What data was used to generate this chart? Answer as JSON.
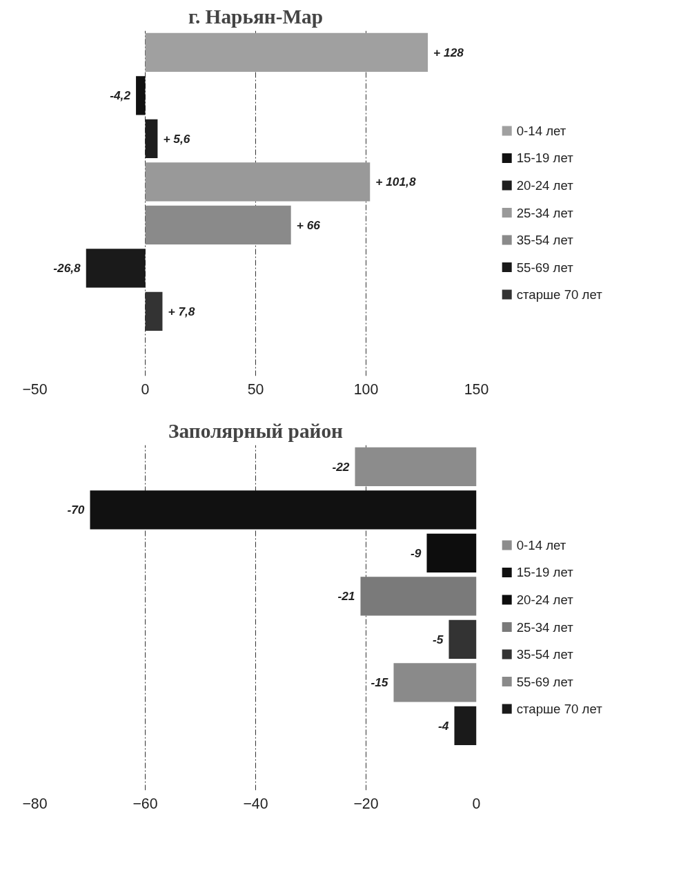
{
  "chart_data": [
    {
      "type": "bar",
      "title": "г. Нарьян-Мар",
      "orientation": "horizontal",
      "categories": [
        null
      ],
      "xlim": [
        -50,
        150
      ],
      "xticks": [
        -50,
        0,
        50,
        100,
        150
      ],
      "grid": "x",
      "legend": "right",
      "tick_labels": "x",
      "series": [
        {
          "name": "0-14 лет",
          "color": "#a0a0a0",
          "values": [
            128
          ],
          "value_labels": [
            "+ 128"
          ]
        },
        {
          "name": "15-19 лет",
          "color": "#111111",
          "values": [
            -4.2
          ],
          "value_labels": [
            "-4,2"
          ]
        },
        {
          "name": "20-24 лет",
          "color": "#1e1e1e",
          "values": [
            5.6
          ],
          "value_labels": [
            "+ 5,6"
          ]
        },
        {
          "name": "25-34 лет",
          "color": "#999999",
          "values": [
            101.8
          ],
          "value_labels": [
            "+ 101,8"
          ]
        },
        {
          "name": "35-54 лет",
          "color": "#8a8a8a",
          "values": [
            66
          ],
          "value_labels": [
            "+ 66"
          ]
        },
        {
          "name": "55-69 лет",
          "color": "#1a1a1a",
          "values": [
            -26.8
          ],
          "value_labels": [
            "-26,8"
          ]
        },
        {
          "name": "старше 70 лет",
          "color": "#333333",
          "values": [
            7.8
          ],
          "value_labels": [
            "+ 7,8"
          ]
        }
      ]
    },
    {
      "type": "bar",
      "title": "Заполярный район",
      "orientation": "horizontal",
      "categories": [
        null
      ],
      "xlim": [
        -80,
        0
      ],
      "xticks": [
        -80,
        -60,
        -40,
        -20,
        0
      ],
      "grid": "x",
      "legend": "right",
      "tick_labels": "x",
      "series": [
        {
          "name": "0-14 лет",
          "color": "#8c8c8c",
          "values": [
            -22
          ],
          "value_labels": [
            "-22"
          ]
        },
        {
          "name": "15-19 лет",
          "color": "#111111",
          "values": [
            -70
          ],
          "value_labels": [
            "-70"
          ]
        },
        {
          "name": "20-24 лет",
          "color": "#0d0d0d",
          "values": [
            -9
          ],
          "value_labels": [
            "-9"
          ]
        },
        {
          "name": "25-34 лет",
          "color": "#7a7a7a",
          "values": [
            -21
          ],
          "value_labels": [
            "-21"
          ]
        },
        {
          "name": "35-54 лет",
          "color": "#333333",
          "values": [
            -5
          ],
          "value_labels": [
            "-5"
          ]
        },
        {
          "name": "55-69 лет",
          "color": "#8a8a8a",
          "values": [
            -15
          ],
          "value_labels": [
            "-15"
          ]
        },
        {
          "name": "старше 70 лет",
          "color": "#1a1a1a",
          "values": [
            -4
          ],
          "value_labels": [
            "-4"
          ]
        }
      ]
    }
  ]
}
